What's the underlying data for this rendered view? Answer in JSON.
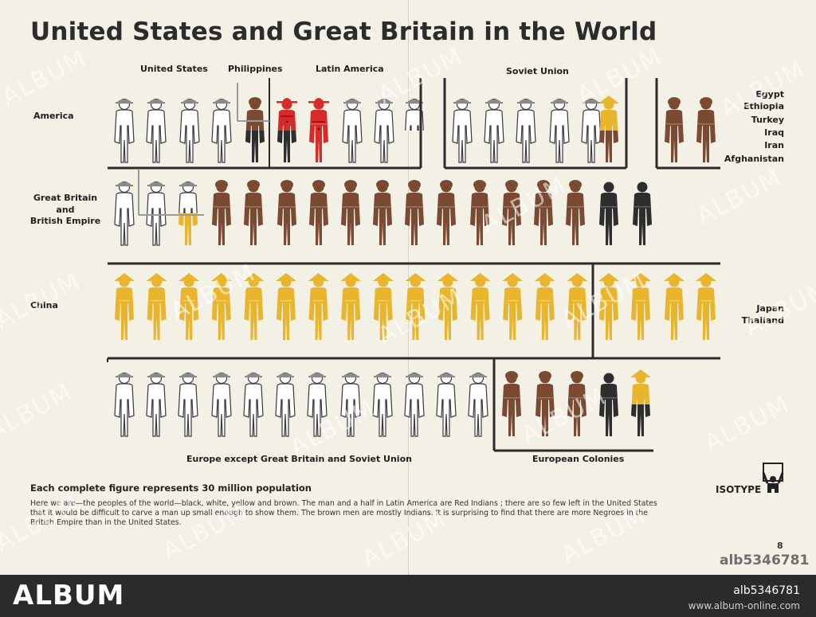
{
  "title": "United States and Great Britain in the World",
  "labels": {
    "united_states": "United States",
    "philippines": "Philippines",
    "latin_america": "Latin America",
    "soviet_union": "Soviet Union",
    "america": "America",
    "east_countries": [
      "Egypt",
      "Ethiopia",
      "Turkey",
      "Iraq",
      "Iran",
      "Afghanistan"
    ],
    "great_britain": [
      "Great Britain",
      "and",
      "British Empire"
    ],
    "china": "China",
    "japan_thailand": [
      "Japan",
      "Thailand"
    ],
    "europe": "Europe except Great Britain and Soviet Union",
    "european_colonies": "European Colonies"
  },
  "legend": "Each complete figure represents 30 million population",
  "caption": "Here we are—the peoples of the world—black, white, yellow and brown.  The man and a half in Latin America are Red Indians ; there are so few left in the United States that it would be difficult to carve a man up small enough to show them.  The brown men are mostly Indians.  It is surprising to find that there are more Negroes in the British Empire than in the United States.",
  "isotype": "ISOTYPE",
  "page_number": "8",
  "stock_id": "alb5346781",
  "watermark": "ALBUM",
  "footer": {
    "brand": "ALBUM",
    "image_id": "alb5346781",
    "url": "www.album-online.com"
  },
  "colors": {
    "white_outline": "#3a3a3a",
    "brown": "#7a4a32",
    "black": "#2e2e2e",
    "yellow": "#e8b52c",
    "red": "#d92a2a"
  },
  "rows": [
    {
      "name": "america",
      "figures": [
        {
          "race": "white",
          "hat": "fedora",
          "count": 4,
          "group": "United States"
        },
        {
          "race": "brown",
          "hat": "turban",
          "count": 0.5,
          "group": "Philippines"
        },
        {
          "race": "black",
          "hat": "none",
          "count": 0.5,
          "group": "United States"
        },
        {
          "race": "red",
          "hat": "sombrero",
          "count": 1.5,
          "group": "Latin America"
        },
        {
          "race": "black",
          "hat": "none",
          "count": 0.5,
          "group": "Latin America"
        },
        {
          "race": "white",
          "hat": "fedora",
          "count": 2.5,
          "group": "Latin America"
        },
        {
          "race": "white",
          "hat": "fedora",
          "count": 4.5,
          "group": "Soviet Union"
        },
        {
          "race": "yellow",
          "hat": "coolie",
          "count": 0.5,
          "group": "Soviet Union"
        },
        {
          "race": "brown",
          "hat": "turban",
          "count": 0.5,
          "group": "Soviet Union"
        },
        {
          "race": "brown",
          "hat": "turban",
          "count": 2,
          "group": "Egypt Ethiopia Turkey Iraq Iran Afghanistan"
        }
      ]
    },
    {
      "name": "british-empire",
      "figures": [
        {
          "race": "white",
          "hat": "fedora",
          "count": 2.5
        },
        {
          "race": "yellow",
          "hat": "coolie",
          "count": 0.5
        },
        {
          "race": "brown",
          "hat": "turban",
          "count": 12
        },
        {
          "race": "black",
          "hat": "none",
          "count": 2
        }
      ]
    },
    {
      "name": "china-japan",
      "figures": [
        {
          "race": "yellow",
          "hat": "coolie",
          "count": 15,
          "group": "China"
        },
        {
          "race": "yellow",
          "hat": "coolie",
          "count": 4,
          "group": "Japan Thailand"
        }
      ]
    },
    {
      "name": "europe",
      "figures": [
        {
          "race": "white",
          "hat": "fedora",
          "count": 12,
          "group": "Europe except Great Britain and Soviet Union"
        },
        {
          "race": "brown",
          "hat": "turban",
          "count": 3,
          "group": "European Colonies"
        },
        {
          "race": "black",
          "hat": "none",
          "count": 1.5,
          "group": "European Colonies"
        },
        {
          "race": "yellow",
          "hat": "coolie",
          "count": 0.5,
          "group": "European Colonies"
        }
      ]
    }
  ]
}
